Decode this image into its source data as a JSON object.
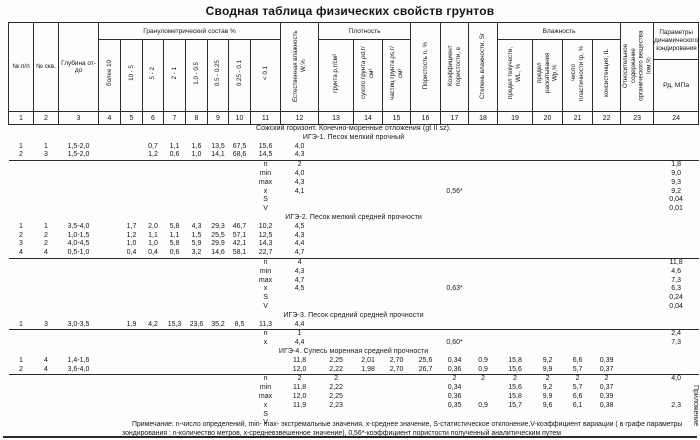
{
  "title": "Сводная таблица  физических свойств грунтов",
  "appendix_label": "Приложение",
  "note": {
    "line1": "Примечание:  n-число определений,  min- max- экстремальные значения,  х-среднее значение,  S-статистическое отклонение,V-коэффициент вариации ( в графе параметры",
    "line2": "зондирования : n-количество метров, х-средневзвешенное значение), 0,56*-коэффициент пористости  полученный аналитическим путем"
  },
  "table": {
    "header": {
      "col1": "№ п/п",
      "col2": "№ скв.",
      "col3": "Глубина от- до",
      "group_granulometric": "Гранулометрический состав %",
      "col4": "более 10",
      "col5": "10 - 5",
      "col6": "5 - 2",
      "col7": "2 - 1",
      "col8": "1.0 - 0.5",
      "col9": "0.5 - 0.25",
      "col10": "0.25 - 0.1",
      "col11": "< 0.1",
      "col12": "Естественная влажность W,%",
      "group_density": "Плотность",
      "col13": "грунта ρ,г/см³",
      "col14": "сухого грунта ρd,г/см³",
      "col15": "частиц грунта ρs,г/см³",
      "col16": "Пористость n, %",
      "col17": "Коэффициент пористости, е",
      "col18": "Степень влажности, Sr",
      "group_moisture": "Влажность",
      "col19": "предел текучести, WL, %",
      "col20": "предел раскатывания Wp,%",
      "col21": "число пластичности Ip, %",
      "col22": "консистенция, IL",
      "col23": "Относительное содержание органического вещества Iом,%",
      "group_sounding": "Параметры динамического зондирования",
      "col24_sub": "Рд, МПа",
      "numbers": [
        "1",
        "2",
        "3",
        "4",
        "5",
        "6",
        "7",
        "8",
        "9",
        "10",
        "11",
        "12",
        "13",
        "14",
        "15",
        "16",
        "17",
        "18",
        "19",
        "20",
        "21",
        "22",
        "23",
        "24"
      ]
    },
    "rows": [
      {
        "type": "section",
        "text": "Сожский горизонт. Конечно-моренные  отложения (gt II sz)."
      },
      {
        "type": "section",
        "text": "ИГЭ-1. Песок мелкий прочный"
      },
      {
        "type": "data",
        "cells": {
          "1": "1",
          "2": "1",
          "3": "1,5-2,0",
          "6": "0,7",
          "7": "1,1",
          "8": "1,6",
          "9": "13,5",
          "10": "67,5",
          "11": "15,6",
          "12": "4,0"
        }
      },
      {
        "type": "data",
        "rule": true,
        "cells": {
          "1": "2",
          "2": "3",
          "3": "1,5-2,0",
          "6": "1,2",
          "7": "0,6",
          "8": "1,0",
          "9": "14,1",
          "10": "68,6",
          "11": "14,5",
          "12": "4,3"
        }
      },
      {
        "type": "stat",
        "cells": {
          "11": "n",
          "12": "2",
          "24": "1,8"
        }
      },
      {
        "type": "stat",
        "cells": {
          "11": "min",
          "12": "4,0",
          "24": "9,0"
        }
      },
      {
        "type": "stat",
        "cells": {
          "11": "max",
          "12": "4,3",
          "24": "9,3"
        }
      },
      {
        "type": "stat",
        "cells": {
          "11": "x",
          "12": "4,1",
          "17": "0,56*",
          "24": "9,2"
        }
      },
      {
        "type": "stat",
        "cells": {
          "11": "S",
          "24": "0,04"
        }
      },
      {
        "type": "stat",
        "cells": {
          "11": "V",
          "24": "0,01"
        }
      },
      {
        "type": "section",
        "text": "ИГЭ-2. Песок мелкий  средней прочности"
      },
      {
        "type": "data",
        "cells": {
          "1": "1",
          "2": "1",
          "3": "3,5-4,0",
          "5": "1,7",
          "6": "2,0",
          "7": "5,8",
          "8": "4,3",
          "9": "29,3",
          "10": "46,7",
          "11": "10,2",
          "12": "4,5"
        }
      },
      {
        "type": "data",
        "cells": {
          "1": "2",
          "2": "2",
          "3": "1,0-1,5",
          "5": "1,2",
          "6": "1,1",
          "7": "1,1",
          "8": "1,5",
          "9": "25,5",
          "10": "57,1",
          "11": "12,5",
          "12": "4,3"
        }
      },
      {
        "type": "data",
        "cells": {
          "1": "3",
          "2": "2",
          "3": "4,0-4,5",
          "5": "1,0",
          "6": "1,0",
          "7": "5,8",
          "8": "5,9",
          "9": "29,9",
          "10": "42,1",
          "11": "14,3",
          "12": "4,4"
        }
      },
      {
        "type": "data",
        "rule": true,
        "cells": {
          "1": "4",
          "2": "4",
          "3": "0,5-1,0",
          "5": "0,4",
          "6": "0,4",
          "7": "0,6",
          "8": "3,2",
          "9": "14,6",
          "10": "58,1",
          "11": "22,7",
          "12": "4,7"
        }
      },
      {
        "type": "stat",
        "cells": {
          "11": "n",
          "12": "4",
          "24": "11,8"
        }
      },
      {
        "type": "stat",
        "cells": {
          "11": "min",
          "12": "4,3",
          "24": "4,6"
        }
      },
      {
        "type": "stat",
        "cells": {
          "11": "max",
          "12": "4,7",
          "24": "7,3"
        }
      },
      {
        "type": "stat",
        "cells": {
          "11": "x",
          "12": "4,5",
          "17": "0,63*",
          "24": "6,3"
        }
      },
      {
        "type": "stat",
        "cells": {
          "11": "S",
          "24": "0,24"
        }
      },
      {
        "type": "stat",
        "cells": {
          "11": "V",
          "24": "0,04"
        }
      },
      {
        "type": "section",
        "text": "ИГЭ-3. Песок средний  средней прочности"
      },
      {
        "type": "data",
        "rule": true,
        "cells": {
          "1": "1",
          "2": "3",
          "3": "3,0-3,5",
          "5": "1,9",
          "6": "4,2",
          "7": "15,3",
          "8": "23,6",
          "9": "35,2",
          "10": "8,5",
          "11": "11,3",
          "12": "4,4"
        }
      },
      {
        "type": "stat",
        "cells": {
          "11": "n",
          "12": "1",
          "24": "2,4"
        }
      },
      {
        "type": "stat",
        "cells": {
          "11": "x",
          "12": "4,4",
          "17": "0,60*",
          "24": "7,3"
        }
      },
      {
        "type": "section",
        "text": "ИГЭ-4. Супесь моренная средней прочности"
      },
      {
        "type": "data",
        "cells": {
          "1": "1",
          "2": "4",
          "3": "1,4-1,6",
          "12": "11,8",
          "13": "2,25",
          "14": "2,01",
          "15": "2,70",
          "16": "25,6",
          "17": "0,34",
          "18": "0,9",
          "19": "15,8",
          "20": "9,2",
          "21": "6,6",
          "22": "0,39"
        }
      },
      {
        "type": "data",
        "rule": true,
        "cells": {
          "1": "2",
          "2": "4",
          "3": "3,6-4,0",
          "12": "12,0",
          "13": "2,22",
          "14": "1,98",
          "15": "2,70",
          "16": "26,7",
          "17": "0,36",
          "18": "0,9",
          "19": "15,6",
          "20": "9,9",
          "21": "5,7",
          "22": "0,37"
        }
      },
      {
        "type": "stat",
        "cells": {
          "11": "n",
          "12": "2",
          "13": "2",
          "17": "2",
          "18": "2",
          "19": "2",
          "20": "2",
          "21": "2",
          "22": "2",
          "24": "4,0"
        }
      },
      {
        "type": "stat",
        "cells": {
          "11": "min",
          "12": "11,8",
          "13": "2,22",
          "17": "0,34",
          "19": "15,6",
          "20": "9,2",
          "21": "5,7",
          "22": "0,37"
        }
      },
      {
        "type": "stat",
        "cells": {
          "11": "max",
          "12": "12,0",
          "13": "2,25",
          "17": "0,36",
          "19": "15,8",
          "20": "9,9",
          "21": "6,6",
          "22": "0,39"
        }
      },
      {
        "type": "stat",
        "cells": {
          "11": "x",
          "12": "11,9",
          "13": "2,23",
          "17": "0,35",
          "18": "0,9",
          "19": "15,7",
          "20": "9,6",
          "21": "6,1",
          "22": "0,38",
          "24": "2,3"
        }
      },
      {
        "type": "stat",
        "cells": {
          "11": "S"
        }
      },
      {
        "type": "stat",
        "cells": {
          "11": "V"
        }
      }
    ]
  }
}
